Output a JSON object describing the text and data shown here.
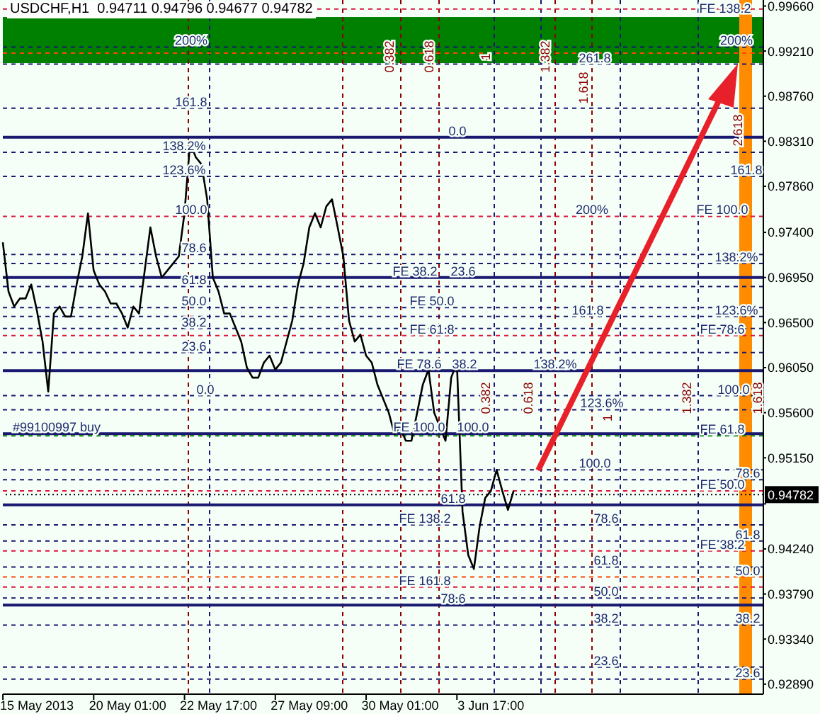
{
  "chart_data": {
    "type": "line",
    "title": "USDCHF,H1  0.94711 0.94796 0.94677 0.94782",
    "categories": [
      null,
      null,
      null,
      null,
      null,
      null,
      "15 May 2013",
      null,
      null,
      null,
      null,
      null,
      null,
      null,
      null,
      null,
      null,
      null,
      null,
      null,
      null,
      null,
      "20 May 01:00",
      null,
      null,
      null,
      null,
      null,
      null,
      null,
      null,
      null,
      null,
      null,
      null,
      null,
      null,
      null,
      "22 May 17:00",
      null,
      null,
      null,
      null,
      null,
      null,
      null,
      null,
      null,
      null,
      null,
      null,
      null,
      null,
      null,
      "27 May 09:00",
      null,
      null,
      null,
      null,
      null,
      null,
      null,
      null,
      null,
      null,
      null,
      null,
      null,
      null,
      null,
      "30 May 01:00",
      null,
      null,
      null,
      null,
      null,
      null,
      null,
      null,
      null,
      null,
      null,
      null,
      null,
      null,
      null,
      "3 Jun 17:00",
      null,
      null,
      null,
      null,
      null,
      null,
      null,
      null,
      null,
      null,
      null,
      null,
      null,
      null,
      null,
      null,
      null,
      null,
      null,
      null,
      null,
      null,
      null,
      null,
      null,
      null,
      null,
      null,
      null,
      null,
      null,
      null,
      null,
      null,
      null,
      null,
      null,
      null,
      null,
      null,
      null,
      null,
      null,
      null,
      null,
      null,
      null,
      null
    ],
    "ylim": [
      0.9279,
      0.9972
    ],
    "yticks": [
      {
        "value": 0.9966,
        "label": "0.99660"
      },
      {
        "value": 0.9921,
        "label": "0.99210"
      },
      {
        "value": 0.9876,
        "label": "0.98760"
      },
      {
        "value": 0.9831,
        "label": "0.98310"
      },
      {
        "value": 0.9786,
        "label": "0.97860"
      },
      {
        "value": 0.974,
        "label": "0.97400"
      },
      {
        "value": 0.9695,
        "label": "0.96950"
      },
      {
        "value": 0.965,
        "label": "0.96500"
      },
      {
        "value": 0.9605,
        "label": "0.96050"
      },
      {
        "value": 0.956,
        "label": "0.95600"
      },
      {
        "value": 0.9515,
        "label": "0.95150"
      },
      {
        "value": 0.9469,
        "label": null
      },
      {
        "value": 0.9424,
        "label": "0.94240"
      },
      {
        "value": 0.9379,
        "label": "0.93790"
      },
      {
        "value": 0.9334,
        "label": "0.93340"
      },
      {
        "value": 0.9289,
        "label": "0.92890"
      }
    ],
    "series": [
      {
        "color": "#000000",
        "values": [
          0.973,
          0.9681,
          0.9666,
          0.9674,
          0.9674,
          0.9688,
          0.9662,
          0.9631,
          0.9581,
          0.9659,
          0.9666,
          0.9656,
          0.9656,
          0.9688,
          0.9716,
          0.9759,
          0.9702,
          0.9688,
          0.9681,
          0.9669,
          0.9669,
          0.9659,
          0.9645,
          0.9666,
          0.9659,
          0.9702,
          0.9745,
          0.9716,
          0.9695,
          0.9702,
          0.9709,
          0.9716,
          0.9759,
          0.983,
          0.9815,
          0.9808,
          0.9773,
          0.9695,
          0.9681,
          0.9659,
          0.9659,
          0.9645,
          0.9631,
          0.9605,
          0.9595,
          0.9595,
          0.961,
          0.9617,
          0.9603,
          0.961,
          0.9631,
          0.9652,
          0.9688,
          0.9709,
          0.9745,
          0.9759,
          0.9745,
          0.9766,
          0.9773,
          0.9745,
          0.9716,
          0.9652,
          0.9631,
          0.9638,
          0.9617,
          0.961,
          0.9588,
          0.9574,
          0.956,
          0.9539,
          0.9546,
          0.9532,
          0.9532,
          0.956,
          0.9588,
          0.9603,
          0.956,
          0.9546,
          0.9532,
          0.9595,
          0.961,
          0.9461,
          0.9418,
          0.9404,
          0.9446,
          0.9475,
          0.9482,
          0.9503,
          0.9482,
          0.9463,
          0.9482,
          null,
          null,
          null,
          null,
          null,
          null,
          null,
          null,
          null,
          null,
          null,
          null,
          null,
          null,
          null,
          null,
          null,
          null,
          null,
          null,
          null,
          null,
          null,
          null,
          null,
          null,
          null,
          null,
          null,
          null,
          null,
          null,
          null,
          null,
          null,
          null,
          null,
          null,
          null,
          null,
          null,
          null,
          null,
          null
        ]
      }
    ],
    "bands": [
      {
        "axis": "y",
        "from": 0.9909,
        "to": 0.9955,
        "color": "#008000"
      }
    ],
    "ref_lines": [
      {
        "axis": "y",
        "value": 0.9963,
        "color": "#dc143c",
        "line_style": "dashed"
      },
      {
        "axis": "y",
        "value": 0.9925,
        "color": "#191970",
        "line_style": "dashed"
      },
      {
        "axis": "y",
        "value": 0.9919,
        "color": "#ff4500",
        "line_style": "dashed"
      },
      {
        "axis": "y",
        "value": 0.9908,
        "color": "#191970",
        "line_style": "dashed"
      },
      {
        "axis": "y",
        "value": 0.9835,
        "color": "#191970",
        "line_style": "solid"
      },
      {
        "axis": "y",
        "value": 0.9695,
        "color": "#191970",
        "line_style": "solid"
      },
      {
        "axis": "y",
        "value": 0.9602,
        "color": "#191970",
        "line_style": "solid"
      },
      {
        "axis": "y",
        "value": 0.9539,
        "color": "#191970",
        "line_style": "solid"
      },
      {
        "axis": "y",
        "value": 0.9468,
        "color": "#191970",
        "line_style": "solid"
      },
      {
        "axis": "y",
        "value": 0.9368,
        "color": "#191970",
        "line_style": "solid"
      },
      {
        "axis": "y",
        "value": 0.9537,
        "color": "#008000",
        "line_style": "dashed"
      },
      {
        "axis": "y",
        "value": 0.9396,
        "color": "#ff4500",
        "line_style": "dashed"
      },
      {
        "axis": "y",
        "value": 0.9756,
        "color": "#dc143c",
        "line_style": "dashed"
      },
      {
        "axis": "y",
        "value": 0.9637,
        "color": "#dc143c",
        "line_style": "dashed"
      },
      {
        "axis": "y",
        "value": 0.9482,
        "color": "#dc143c",
        "line_style": "dashed"
      },
      {
        "axis": "y",
        "value": 0.9422,
        "color": "#dc143c",
        "line_style": "dashed"
      },
      {
        "axis": "y",
        "value": 0.9386,
        "color": "#dc143c",
        "line_style": "dashed"
      },
      {
        "axis": "y",
        "value": 0.9864,
        "color": "#191970",
        "line_style": "dashed"
      },
      {
        "axis": "y",
        "value": 0.982,
        "color": "#191970",
        "line_style": "dashed"
      },
      {
        "axis": "y",
        "value": 0.9796,
        "color": "#191970",
        "line_style": "dashed"
      },
      {
        "axis": "y",
        "value": 0.9718,
        "color": "#191970",
        "line_style": "dashed"
      },
      {
        "axis": "y",
        "value": 0.9709,
        "color": "#191970",
        "line_style": "dashed"
      },
      {
        "axis": "y",
        "value": 0.9686,
        "color": "#191970",
        "line_style": "dashed"
      },
      {
        "axis": "y",
        "value": 0.9665,
        "color": "#191970",
        "line_style": "dashed"
      },
      {
        "axis": "y",
        "value": 0.9656,
        "color": "#191970",
        "line_style": "dashed"
      },
      {
        "axis": "y",
        "value": 0.9644,
        "color": "#191970",
        "line_style": "dashed"
      },
      {
        "axis": "y",
        "value": 0.962,
        "color": "#191970",
        "line_style": "dashed"
      },
      {
        "axis": "y",
        "value": 0.9577,
        "color": "#191970",
        "line_style": "dashed"
      },
      {
        "axis": "y",
        "value": 0.9563,
        "color": "#191970",
        "line_style": "dashed"
      },
      {
        "axis": "y",
        "value": 0.9503,
        "color": "#191970",
        "line_style": "dashed"
      },
      {
        "axis": "y",
        "value": 0.9493,
        "color": "#191970",
        "line_style": "dashed"
      },
      {
        "axis": "y",
        "value": 0.9448,
        "color": "#191970",
        "line_style": "dashed"
      },
      {
        "axis": "y",
        "value": 0.9432,
        "color": "#191970",
        "line_style": "dashed"
      },
      {
        "axis": "y",
        "value": 0.9406,
        "color": "#191970",
        "line_style": "dashed"
      },
      {
        "axis": "y",
        "value": 0.9375,
        "color": "#191970",
        "line_style": "dashed"
      },
      {
        "axis": "y",
        "value": 0.9348,
        "color": "#191970",
        "line_style": "dashed"
      },
      {
        "axis": "y",
        "value": 0.9306,
        "color": "#191970",
        "line_style": "dashed"
      },
      {
        "axis": "y",
        "value": 0.9294,
        "color": "#191970",
        "line_style": "dashed"
      },
      {
        "axis": "y",
        "value": 0.94782,
        "label": "0.94782",
        "color": "#000000",
        "line_style": "dotted"
      }
    ],
    "annotations": [
      {
        "text": "200%",
        "y": 0.9925
      },
      {
        "text": "161.8",
        "y": 0.9864
      },
      {
        "text": "138.2%",
        "y": 0.982
      },
      {
        "text": "123.6%",
        "y": 0.9796
      },
      {
        "text": "100.0",
        "y": 0.9756
      },
      {
        "text": "78.6",
        "y": 0.9718
      },
      {
        "text": "61.8",
        "y": 0.9686
      },
      {
        "text": "50.0",
        "y": 0.9665
      },
      {
        "text": "38.2",
        "y": 0.9644
      },
      {
        "text": "23.6",
        "y": 0.962
      },
      {
        "text": "0.0",
        "y": 0.9577
      },
      {
        "text": "#99100997 buy",
        "y": 0.9539
      },
      {
        "text": "0.0",
        "y": 0.9835
      },
      {
        "text": "FE 38.2",
        "y": 0.9695
      },
      {
        "text": "23.6",
        "y": 0.9695
      },
      {
        "text": "FE 50.0",
        "y": 0.9665
      },
      {
        "text": "FE 61.8",
        "y": 0.9637
      },
      {
        "text": "38.2",
        "y": 0.9602
      },
      {
        "text": "FE 78.6",
        "y": 0.9602
      },
      {
        "text": "FE 100.0",
        "y": 0.9539
      },
      {
        "text": "100.0",
        "y": 0.9539
      },
      {
        "text": "61.8",
        "y": 0.9468
      },
      {
        "text": "FE 138.2",
        "y": 0.9448
      },
      {
        "text": "FE 161.8",
        "y": 0.9386
      },
      {
        "text": "78.6",
        "y": 0.9368
      },
      {
        "text": "261.8",
        "y": 0.9908
      },
      {
        "text": "200%",
        "y": 0.9756
      },
      {
        "text": "161.8",
        "y": 0.9656
      },
      {
        "text": "138.2%",
        "y": 0.9602
      },
      {
        "text": "123.6%",
        "y": 0.9563
      },
      {
        "text": "100.0",
        "y": 0.9503
      },
      {
        "text": "78.6",
        "y": 0.9448
      },
      {
        "text": "61.8",
        "y": 0.9406
      },
      {
        "text": "50.0",
        "y": 0.9375
      },
      {
        "text": "38.2",
        "y": 0.9348
      },
      {
        "text": "23.6",
        "y": 0.9306
      },
      {
        "text": "FE 138.2",
        "y": 0.9963
      },
      {
        "text": "200%",
        "y": 0.9925
      },
      {
        "text": "161.8",
        "y": 0.9796
      },
      {
        "text": "FE 100.0",
        "y": 0.9756
      },
      {
        "text": "138.2%",
        "y": 0.9709
      },
      {
        "text": "123.6%",
        "y": 0.9656
      },
      {
        "text": "FE 78.6",
        "y": 0.9637
      },
      {
        "text": "100.0",
        "y": 0.9577
      },
      {
        "text": "FE 61.8",
        "y": 0.9537
      },
      {
        "text": "78.6",
        "y": 0.9493
      },
      {
        "text": "FE 50.0",
        "y": 0.9482
      },
      {
        "text": "61.8",
        "y": 0.9432
      },
      {
        "text": "FE 38.2",
        "y": 0.9422
      },
      {
        "text": "50.0",
        "y": 0.9396
      },
      {
        "text": "38.2",
        "y": 0.9348
      },
      {
        "text": "23.6",
        "y": 0.9294
      },
      "0.382",
      "0.618",
      "1",
      "1.382",
      "1.618",
      "2.618",
      "0.382",
      "0.618",
      "1",
      "1.382",
      "1.618"
    ]
  }
}
